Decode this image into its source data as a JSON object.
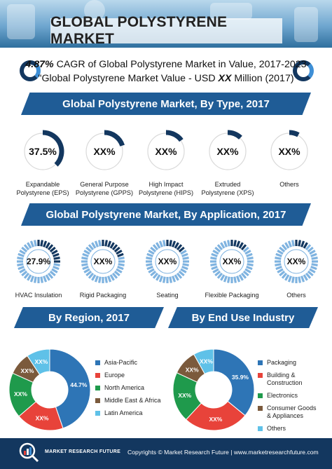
{
  "header": {
    "title": "GLOBAL POLYSTYRENE MARKET"
  },
  "cagr": {
    "value": "4.87%",
    "line1_rest": " CAGR of Global Polystyrene Market in Value, 2017-2023",
    "line2_pre": "\"Global Polystyrene Market Value - USD ",
    "line2_value": "XX",
    "line2_post": " Million (2017)"
  },
  "by_type": {
    "title": "Global Polystyrene Market, By Type, 2017",
    "items": [
      {
        "value": "37.5%",
        "label1": "Expandable",
        "label2": "Polystyrene (EPS)",
        "fraction": 0.375
      },
      {
        "value": "XX%",
        "label1": "General Purpose",
        "label2": "Polystyrene (GPPS)",
        "fraction": 0.2
      },
      {
        "value": "XX%",
        "label1": "High Impact",
        "label2": "Polystyrene (HIPS)",
        "fraction": 0.15
      },
      {
        "value": "XX%",
        "label1": "Extruded",
        "label2": "Polystyrene (XPS)",
        "fraction": 0.12
      },
      {
        "value": "XX%",
        "label1": "Others",
        "label2": "",
        "fraction": 0.08
      }
    ]
  },
  "by_application": {
    "title": "Global Polystyrene Market, By Application, 2017",
    "items": [
      {
        "value": "27.9%",
        "label": "HVAC Insulation",
        "fraction": 0.279
      },
      {
        "value": "XX%",
        "label": "Rigid Packaging",
        "fraction": 0.22
      },
      {
        "value": "XX%",
        "label": "Seating",
        "fraction": 0.18
      },
      {
        "value": "XX%",
        "label": "Flexible Packaging",
        "fraction": 0.15
      },
      {
        "value": "XX%",
        "label": "Others",
        "fraction": 0.1
      }
    ]
  },
  "by_region": {
    "title": "By Region, 2017",
    "slices": [
      {
        "name": "Asia-Pacific",
        "label": "44.7%",
        "value": 44.7,
        "color": "#2e75b6"
      },
      {
        "name": "Europe",
        "label": "XX%",
        "value": 19.0,
        "color": "#e8433a"
      },
      {
        "name": "North America",
        "label": "XX%",
        "value": 18.0,
        "color": "#1f9a4c"
      },
      {
        "name": "Middle East & Africa",
        "label": "XX%",
        "value": 9.0,
        "color": "#7b5a3c"
      },
      {
        "name": "Latin America",
        "label": "XX%",
        "value": 9.3,
        "color": "#5fc1e8"
      }
    ]
  },
  "by_end_use": {
    "title": "By End Use Industry",
    "slices": [
      {
        "name": "Packaging",
        "label": "35.9%",
        "value": 35.9,
        "color": "#2e75b6"
      },
      {
        "name": "Building & Construction",
        "label": "XX%",
        "value": 26.0,
        "color": "#e8433a"
      },
      {
        "name": "Electronics",
        "label": "XX%",
        "value": 20.0,
        "color": "#1f9a4c"
      },
      {
        "name": "Consumer Goods",
        "name2": "& Appliances",
        "label": "XX%",
        "value": 10.0,
        "color": "#7b5a3c"
      },
      {
        "name": "Others",
        "label": "XX%",
        "value": 8.1,
        "color": "#5fc1e8"
      }
    ]
  },
  "footer": {
    "brand": "MARKET RESEARCH FUTURE",
    "copyright": "Copyrights © Market Research Future | www.marketresearchfuture.com"
  },
  "colors": {
    "navy": "#13375f",
    "banner": "#1f5c96",
    "accent": "#3e8fd6"
  }
}
